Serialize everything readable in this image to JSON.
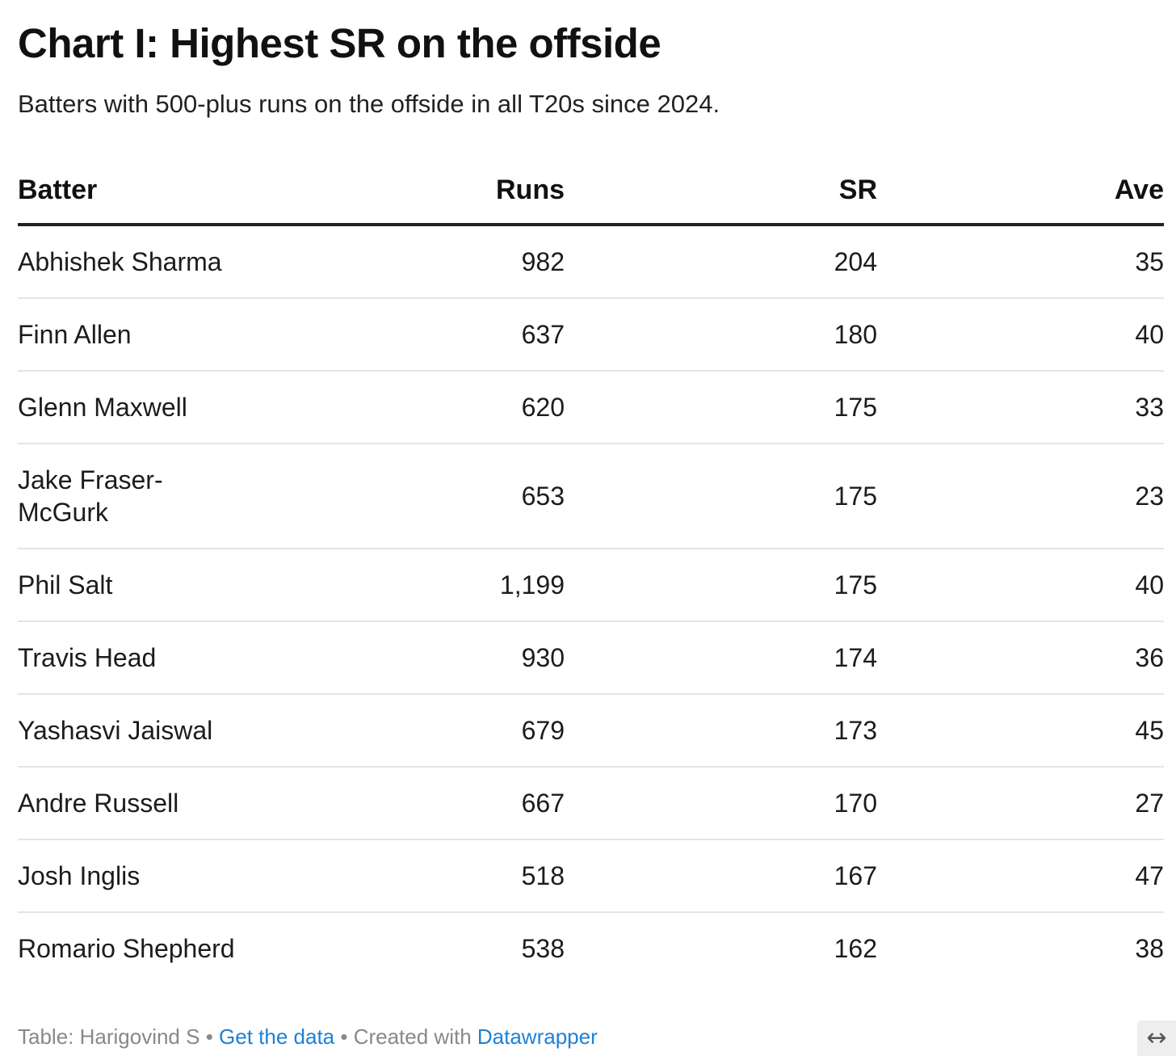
{
  "chart_data": {
    "type": "table",
    "title": "Chart I: Highest SR on the offside",
    "subtitle": "Batters with 500-plus runs on the offside in all T20s since 2024.",
    "columns": [
      "Batter",
      "Runs",
      "SR",
      "Ave"
    ],
    "rows": [
      [
        "Abhishek Sharma",
        "982",
        "204",
        "35"
      ],
      [
        "Finn Allen",
        "637",
        "180",
        "40"
      ],
      [
        "Glenn Maxwell",
        "620",
        "175",
        "33"
      ],
      [
        "Jake Fraser-McGurk",
        "653",
        "175",
        "23"
      ],
      [
        "Phil Salt",
        "1,199",
        "175",
        "40"
      ],
      [
        "Travis Head",
        "930",
        "174",
        "36"
      ],
      [
        "Yashasvi Jaiswal",
        "679",
        "173",
        "45"
      ],
      [
        "Andre Russell",
        "667",
        "170",
        "27"
      ],
      [
        "Josh Inglis",
        "518",
        "167",
        "47"
      ],
      [
        "Romario Shepherd",
        "538",
        "162",
        "38"
      ]
    ]
  },
  "footer": {
    "source": "Table: Harigovind S",
    "sep1": " • ",
    "get_data_link": "Get the data",
    "sep2": " • ",
    "created_with": "Created with ",
    "datawrapper_link": "Datawrapper"
  },
  "icons": {
    "resize": "↔"
  },
  "colors": {
    "link": "#1d81d6",
    "footer_text": "#888888",
    "header_rule": "#222222",
    "row_rule": "#e4e4e4"
  }
}
